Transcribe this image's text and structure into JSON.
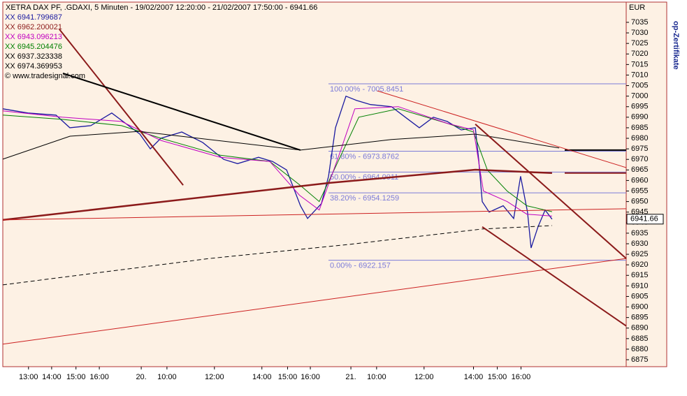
{
  "chart_data": {
    "type": "line",
    "title": "XETRA DAX PF, .GDAXI, 5 Minuten - 19/02/2007 12:20:00 - 21/02/2007 17:50:00 - 6941.66",
    "copyright": "© www.tradesignal.com",
    "y_axis_label": "EUR",
    "side_label": "op-Zertifikate",
    "last_price": 6941.66,
    "legend": [
      {
        "text": "XX 6941.799687",
        "color": "#1a1aa0"
      },
      {
        "text": "XX 6962.200021",
        "color": "#8b1a1a"
      },
      {
        "text": "XX 6943.096213",
        "color": "#c000c0"
      },
      {
        "text": "XX 6945.204476",
        "color": "#008000"
      },
      {
        "text": "XX 6937.323338",
        "color": "#000000"
      },
      {
        "text": "XX 6974.369953",
        "color": "#000000"
      }
    ],
    "xlim": [
      0,
      315.2
    ],
    "xticks": [
      {
        "value": 13,
        "label": "13:00"
      },
      {
        "value": 24.7,
        "label": "14:00"
      },
      {
        "value": 37,
        "label": "15:00"
      },
      {
        "value": 48.8,
        "label": "16:00"
      },
      {
        "value": 70,
        "label": "20."
      },
      {
        "value": 83,
        "label": "10:00"
      },
      {
        "value": 107,
        "label": "12:00"
      },
      {
        "value": 131,
        "label": "14:00"
      },
      {
        "value": 144,
        "label": "15:00"
      },
      {
        "value": 155.5,
        "label": "16:00"
      },
      {
        "value": 176,
        "label": "21."
      },
      {
        "value": 189,
        "label": "10:00"
      },
      {
        "value": 213,
        "label": "12:00"
      },
      {
        "value": 238,
        "label": "14:00"
      },
      {
        "value": 250,
        "label": "15:00"
      },
      {
        "value": 262,
        "label": "16:00"
      }
    ],
    "ylim": [
      6871.7,
      7044.6
    ],
    "yticks": [
      6875,
      6880,
      6885,
      6890,
      6895,
      6900,
      6905,
      6910,
      6915,
      6920,
      6925,
      6930,
      6935,
      6940,
      6945,
      6950,
      6955,
      6960,
      6965,
      6970,
      6975,
      6980,
      6985,
      6990,
      6995,
      7000,
      7005,
      7010,
      7015,
      7020,
      7025,
      7030,
      7035
    ],
    "fib_levels": [
      {
        "label": "100.00% - 7005.8451",
        "value": 7005.8451
      },
      {
        "label": "61.80% - 6973.8762",
        "value": 6973.8762
      },
      {
        "label": "50.00% - 6964.0011",
        "value": 6964.0011
      },
      {
        "label": "38.20% - 6954.1259",
        "value": 6954.1259
      },
      {
        "label": "0.00% - 6922.157",
        "value": 6922.157
      }
    ],
    "fib_color": "#7b7bd8",
    "series": [
      {
        "color": "#1a1aa0",
        "width": 1.3,
        "x": [
          0,
          12.7,
          26.9,
          33.9,
          44.5,
          55.1,
          62.2,
          69.3,
          74.6,
          79.9,
          90.5,
          101.1,
          111.7,
          118.7,
          129.3,
          136.4,
          143.5,
          150.5,
          154.1,
          161.1,
          164.7,
          168.2,
          173.5,
          178.8,
          185.9,
          196.5,
          203.5,
          210.6,
          217.7,
          224.7,
          231.8,
          238.9,
          240.6,
          242.4,
          245.9,
          253,
          258.3,
          261.8,
          265.3,
          267.1,
          270.6,
          274.2,
          277.7
        ],
        "values": [
          6994,
          6992,
          6991,
          6985,
          6986,
          6992,
          6987,
          6982,
          6975,
          6980,
          6983,
          6978,
          6970,
          6968,
          6971,
          6969,
          6965,
          6948,
          6942,
          6949,
          6962,
          6985,
          7000,
          6998,
          6996,
          6995,
          6990,
          6985,
          6990,
          6988,
          6984,
          6985,
          6970,
          6950,
          6945,
          6948,
          6942,
          6962,
          6945,
          6928,
          6938,
          6946,
          6941.66
        ]
      },
      {
        "color": "#008000",
        "width": 1,
        "x": [
          0,
          30,
          60,
          80,
          110,
          135,
          150,
          160,
          170,
          180,
          200,
          225,
          238,
          245,
          255,
          265,
          277.7
        ],
        "values": [
          6991,
          6989,
          6986,
          6980,
          6972,
          6969,
          6958,
          6950,
          6970,
          6990,
          6994,
          6987,
          6983,
          6965,
          6955,
          6948,
          6945.2
        ]
      },
      {
        "color": "#c000c0",
        "width": 1,
        "x": [
          0,
          30,
          60,
          80,
          110,
          135,
          150,
          160,
          170,
          178,
          200,
          225,
          238,
          243,
          255,
          265,
          277.7
        ],
        "values": [
          6993,
          6990,
          6988,
          6979,
          6971,
          6969,
          6953,
          6946,
          6972,
          6994,
          6995,
          6987,
          6984,
          6955,
          6950,
          6944,
          6943.1
        ]
      },
      {
        "color": "#000000",
        "width": 1,
        "x": [
          0,
          34,
          69,
          150.5,
          196.5,
          238.9,
          281.3
        ],
        "values": [
          6970.1,
          6981,
          6983.3,
          6974.4,
          6979.4,
          6982,
          6975.4
        ]
      },
      {
        "color": "#8b1a1a",
        "width": 2.5,
        "x": [
          0,
          164.7,
          238.9,
          277.7
        ],
        "values": [
          6941.3,
          6958.8,
          6965.1,
          6963.5
        ]
      },
      {
        "color": "#000000",
        "width": 1,
        "dash": true,
        "x": [
          0,
          104.6,
          175.3,
          242.4,
          277.7
        ],
        "values": [
          6910.5,
          6923,
          6929.7,
          6937,
          6938.6
        ]
      },
      {
        "color": "#8b1a1a",
        "width": 2,
        "x": [
          91.2,
          28.6
        ],
        "values": [
          6957.8,
          7031.7
        ]
      },
      {
        "color": "#000000",
        "width": 2,
        "x": [
          30.4,
          150.5
        ],
        "values": [
          7010.8,
          6974.4
        ]
      },
      {
        "color": "#000000",
        "width": 2,
        "x": [
          284.1,
          315.2
        ],
        "values": [
          6974.4,
          6974.4
        ]
      },
      {
        "color": "#8b1a1a",
        "width": 2,
        "x": [
          284.1,
          315.2
        ],
        "values": [
          6963.5,
          6963.5
        ]
      },
      {
        "color": "#cc2020",
        "width": 1,
        "x": [
          0,
          315.2
        ],
        "values": [
          6941.3,
          6946.6
        ]
      },
      {
        "color": "#cc2020",
        "width": 1,
        "x": [
          0,
          315.2
        ],
        "values": [
          6882.4,
          6923
        ]
      },
      {
        "color": "#cc2020",
        "width": 1,
        "x": [
          189.4,
          315.2
        ],
        "values": [
          7002.5,
          6966.1
        ]
      },
      {
        "color": "#8b1a1a",
        "width": 2,
        "x": [
          238.9,
          315.2
        ],
        "values": [
          6986.7,
          6923
        ]
      },
      {
        "color": "#8b1a1a",
        "width": 2,
        "x": [
          242.4,
          315.2
        ],
        "values": [
          6938,
          6891
        ]
      }
    ]
  }
}
